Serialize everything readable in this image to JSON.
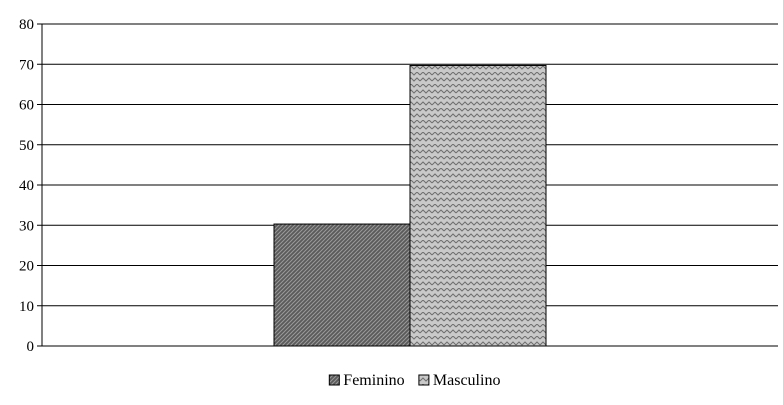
{
  "chart_data": {
    "type": "bar",
    "categories": [
      ""
    ],
    "series": [
      {
        "name": "Feminino",
        "values": [
          30.3
        ],
        "color": "#6b6b6b",
        "pattern": "dense-diagonal-dark"
      },
      {
        "name": "Masculino",
        "values": [
          69.7
        ],
        "color": "#c8c8c8",
        "pattern": "zigzag-light"
      }
    ],
    "title": "",
    "xlabel": "",
    "ylabel": "",
    "ylim": [
      0,
      80
    ],
    "yticks": [
      0,
      10,
      20,
      30,
      40,
      50,
      60,
      70,
      80
    ],
    "grid": true,
    "legend_position": "bottom"
  }
}
